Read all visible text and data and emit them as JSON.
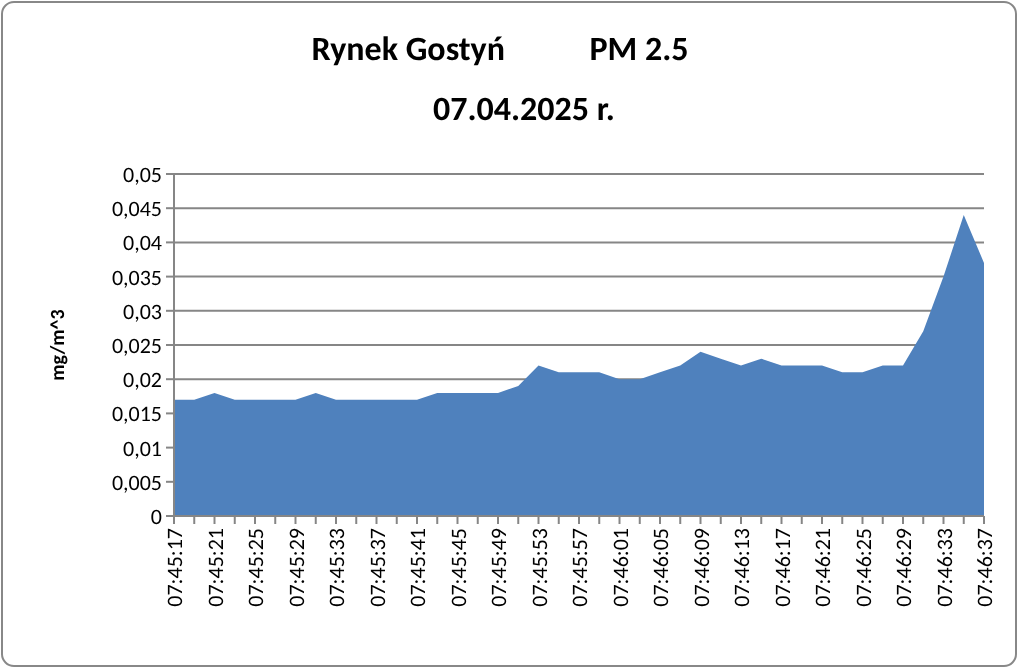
{
  "chart_data": {
    "type": "area",
    "title": "Rynek Gostyń           PM 2.5",
    "subtitle": "07.04.2025 r.",
    "ylabel": "mg/m^3",
    "categories": [
      "07:45:17",
      null,
      "07:45:21",
      null,
      "07:45:25",
      null,
      "07:45:29",
      null,
      "07:45:33",
      null,
      "07:45:37",
      null,
      "07:45:41",
      null,
      "07:45:45",
      null,
      "07:45:49",
      null,
      "07:45:53",
      null,
      "07:45:57",
      null,
      "07:46:01",
      null,
      "07:46:05",
      null,
      "07:46:09",
      null,
      "07:46:13",
      null,
      "07:46:17",
      null,
      "07:46:21",
      null,
      "07:46:25",
      null,
      "07:46:29",
      null,
      "07:46:33",
      null,
      "07:46:37"
    ],
    "series": [
      {
        "color": "#4f81bd",
        "values": [
          0.017,
          0.017,
          0.018,
          0.017,
          0.017,
          0.017,
          0.017,
          0.018,
          0.017,
          0.017,
          0.017,
          0.017,
          0.017,
          0.018,
          0.018,
          0.018,
          0.018,
          0.019,
          0.022,
          0.021,
          0.021,
          0.021,
          0.02,
          0.02,
          0.021,
          0.022,
          0.024,
          0.023,
          0.022,
          0.023,
          0.022,
          0.022,
          0.022,
          0.021,
          0.021,
          0.022,
          0.022,
          0.027,
          0.035,
          0.044,
          0.037
        ]
      }
    ],
    "ylim": [
      0,
      0.05
    ],
    "yticks": [
      {
        "value": 0,
        "label": "0"
      },
      {
        "value": 0.005,
        "label": "0,005"
      },
      {
        "value": 0.01,
        "label": "0,01"
      },
      {
        "value": 0.015,
        "label": "0,015"
      },
      {
        "value": 0.02,
        "label": "0,02"
      },
      {
        "value": 0.025,
        "label": "0,025"
      },
      {
        "value": 0.03,
        "label": "0,03"
      },
      {
        "value": 0.035,
        "label": "0,035"
      },
      {
        "value": 0.04,
        "label": "0,04"
      },
      {
        "value": 0.045,
        "label": "0,045"
      },
      {
        "value": 0.05,
        "label": "0,05"
      }
    ],
    "grid": "y"
  }
}
